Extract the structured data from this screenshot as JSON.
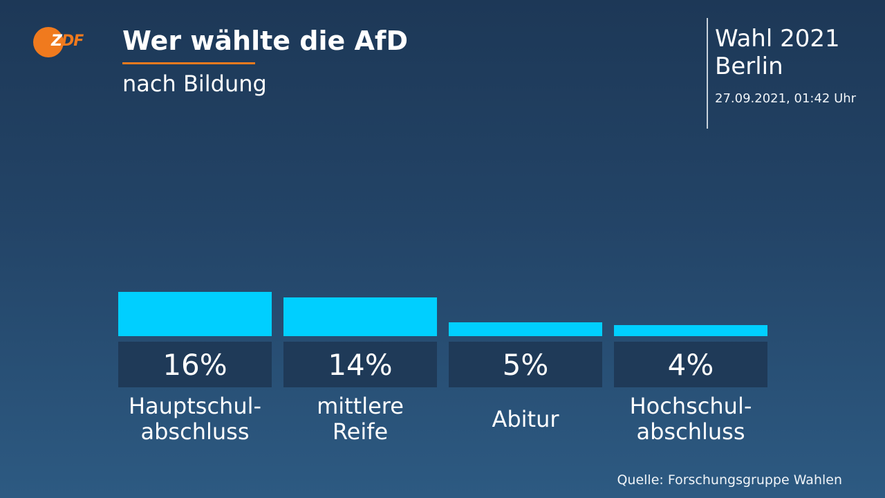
{
  "header": {
    "logo_text_z": "Z",
    "logo_text_df": "DF",
    "title": "Wer wählte die AfD",
    "subtitle": "nach Bildung",
    "election": "Wahl 2021",
    "region": "Berlin",
    "timestamp": "27.09.2021, 01:42 Uhr"
  },
  "footer": {
    "source": "Quelle: Forschungsgruppe Wahlen"
  },
  "colors": {
    "bar": "#00cfff",
    "value_box": "#1f3a58",
    "accent": "#f07a1e"
  },
  "chart_data": {
    "type": "bar",
    "title": "Wer wählte die AfD",
    "subtitle": "nach Bildung",
    "categories": [
      "Hauptschul-\nabschluss",
      "mittlere\nReife",
      "Abitur",
      "Hochschul-\nabschluss"
    ],
    "values": [
      16,
      14,
      5,
      4
    ],
    "value_labels": [
      "16%",
      "14%",
      "5%",
      "4%"
    ],
    "unit": "%",
    "ylim": [
      0,
      100
    ],
    "grid": false,
    "legend": "none"
  }
}
